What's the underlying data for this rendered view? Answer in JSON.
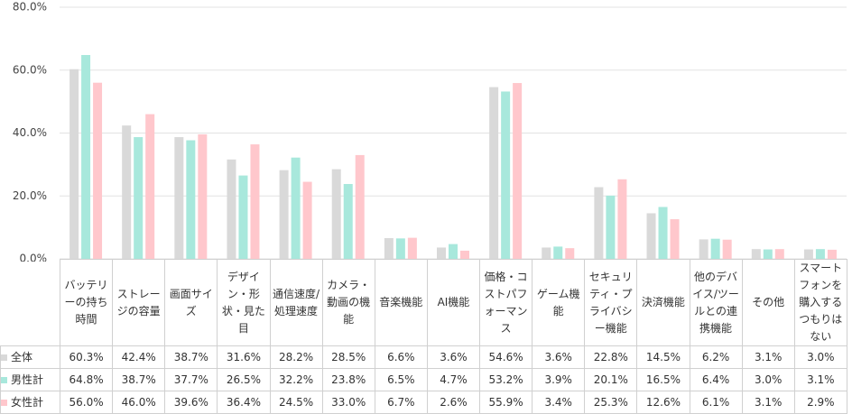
{
  "chart_data": {
    "type": "bar",
    "categories": [
      "バッテリーの持ち時間",
      "ストレージの容量",
      "画面サイズ",
      "デザイン・形状・見た目",
      "通信速度/処理速度",
      "カメラ・動画の機能",
      "音楽機能",
      "AI機能",
      "価格・コストパフォーマンス",
      "ゲーム機能",
      "セキュリティ・プライバシー機能",
      "決済機能",
      "他のデバイス/ツールとの連携機能",
      "その他",
      "スマートフォンを購入するつもりはない"
    ],
    "series": [
      {
        "name": "全体",
        "color": "#d9d9d9",
        "values": [
          60.3,
          42.4,
          38.7,
          31.6,
          28.2,
          28.5,
          6.6,
          3.6,
          54.6,
          3.6,
          22.8,
          14.5,
          6.2,
          3.1,
          3.0
        ],
        "value_labels": [
          "60.3%",
          "42.4%",
          "38.7%",
          "31.6%",
          "28.2%",
          "28.5%",
          "6.6%",
          "3.6%",
          "54.6%",
          "3.6%",
          "22.8%",
          "14.5%",
          "6.2%",
          "3.1%",
          "3.0%"
        ]
      },
      {
        "name": "男性計",
        "color": "#a8e8dc",
        "values": [
          64.8,
          38.7,
          37.7,
          26.5,
          32.2,
          23.8,
          6.5,
          4.7,
          53.2,
          3.9,
          20.1,
          16.5,
          6.4,
          3.0,
          3.1
        ],
        "value_labels": [
          "64.8%",
          "38.7%",
          "37.7%",
          "26.5%",
          "32.2%",
          "23.8%",
          "6.5%",
          "4.7%",
          "53.2%",
          "3.9%",
          "20.1%",
          "16.5%",
          "6.4%",
          "3.0%",
          "3.1%"
        ]
      },
      {
        "name": "女性計",
        "color": "#ffc7cc",
        "values": [
          56.0,
          46.0,
          39.6,
          36.4,
          24.5,
          33.0,
          6.7,
          2.6,
          55.9,
          3.4,
          25.3,
          12.6,
          6.1,
          3.1,
          2.9
        ],
        "value_labels": [
          "56.0%",
          "46.0%",
          "39.6%",
          "36.4%",
          "24.5%",
          "33.0%",
          "6.7%",
          "2.6%",
          "55.9%",
          "3.4%",
          "25.3%",
          "12.6%",
          "6.1%",
          "3.1%",
          "2.9%"
        ]
      }
    ],
    "ylim": [
      0,
      80
    ],
    "yticks": [
      {
        "value": 0,
        "label": "0.0%"
      },
      {
        "value": 20,
        "label": "20.0%"
      },
      {
        "value": 40,
        "label": "40.0%"
      },
      {
        "value": 60,
        "label": "60.0%"
      },
      {
        "value": 80,
        "label": "80.0%"
      }
    ],
    "grid": true
  }
}
